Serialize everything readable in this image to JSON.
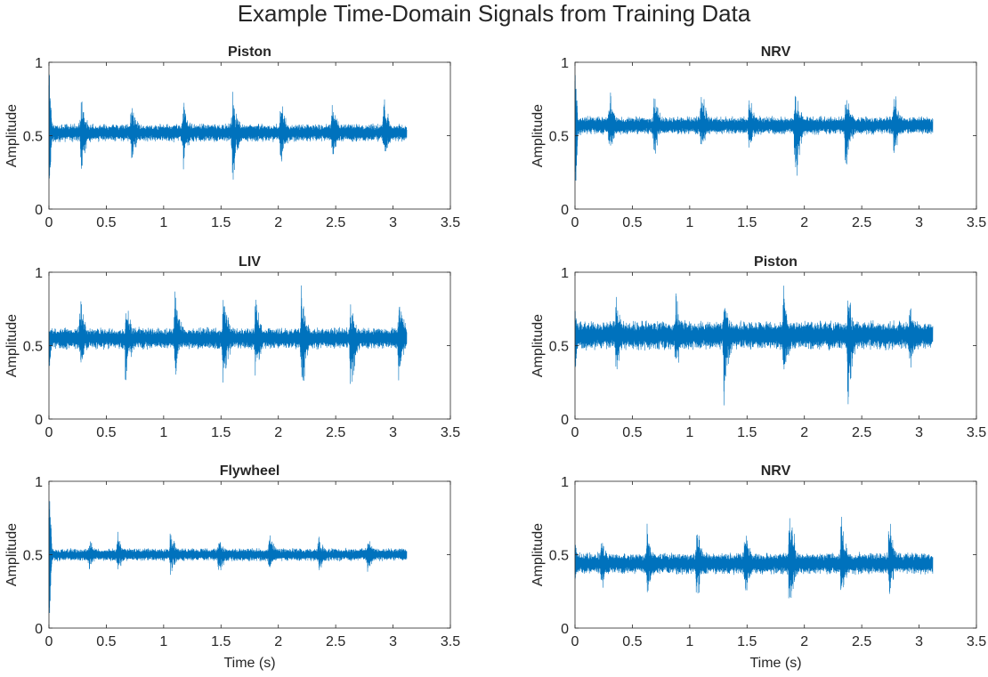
{
  "figure": {
    "title": "Example Time-Domain Signals from Training Data"
  },
  "chart_data": [
    {
      "type": "line",
      "title": "Piston",
      "xlabel": "",
      "ylabel": "Amplitude",
      "xlim": [
        0,
        3.5
      ],
      "ylim": [
        0,
        1
      ],
      "xticks": [
        "0",
        "0.5",
        "1",
        "1.5",
        "2",
        "2.5",
        "3",
        "3.5"
      ],
      "yticks": [
        "0",
        "0.5",
        "1"
      ],
      "grid": false,
      "color": "#0072BD",
      "series": [
        {
          "duration_s": 3.12,
          "baseline": 0.52,
          "noise_amplitude": 0.05,
          "bursts": [
            {
              "t": 0.28,
              "peak": 0.84,
              "trough": 0.2
            },
            {
              "t": 0.72,
              "peak": 0.8,
              "trough": 0.22
            },
            {
              "t": 1.17,
              "peak": 0.8,
              "trough": 0.22
            },
            {
              "t": 1.6,
              "peak": 0.88,
              "trough": 0.0
            },
            {
              "t": 2.02,
              "peak": 0.8,
              "trough": 0.22
            },
            {
              "t": 2.47,
              "peak": 0.84,
              "trough": 0.25
            },
            {
              "t": 2.92,
              "peak": 0.84,
              "trough": 0.28
            }
          ],
          "start_spike": {
            "peak": 1.0,
            "trough": 0.1
          }
        }
      ]
    },
    {
      "type": "line",
      "title": "NRV",
      "xlabel": "",
      "ylabel": "Amplitude",
      "xlim": [
        0,
        3.5
      ],
      "ylim": [
        0,
        1
      ],
      "xticks": [
        "0",
        "0.5",
        "1",
        "1.5",
        "2",
        "2.5",
        "3",
        "3.5"
      ],
      "yticks": [
        "0",
        "0.5",
        "1"
      ],
      "grid": false,
      "color": "#0072BD",
      "series": [
        {
          "duration_s": 3.12,
          "baseline": 0.57,
          "noise_amplitude": 0.05,
          "bursts": [
            {
              "t": 0.3,
              "peak": 0.87,
              "trough": 0.3
            },
            {
              "t": 0.69,
              "peak": 0.85,
              "trough": 0.3
            },
            {
              "t": 1.1,
              "peak": 0.93,
              "trough": 0.3
            },
            {
              "t": 1.52,
              "peak": 0.85,
              "trough": 0.3
            },
            {
              "t": 1.92,
              "peak": 0.97,
              "trough": 0.0
            },
            {
              "t": 2.36,
              "peak": 0.88,
              "trough": 0.17
            },
            {
              "t": 2.78,
              "peak": 0.92,
              "trough": 0.3
            }
          ],
          "start_spike": {
            "peak": 0.97,
            "trough": 0.05
          }
        }
      ]
    },
    {
      "type": "line",
      "title": "LIV",
      "xlabel": "",
      "ylabel": "Amplitude",
      "xlim": [
        0,
        3.5
      ],
      "ylim": [
        0,
        1
      ],
      "xticks": [
        "0",
        "0.5",
        "1",
        "1.5",
        "2",
        "2.5",
        "3",
        "3.5"
      ],
      "yticks": [
        "0",
        "0.5",
        "1"
      ],
      "grid": false,
      "color": "#0072BD",
      "series": [
        {
          "duration_s": 3.12,
          "baseline": 0.55,
          "noise_amplitude": 0.06,
          "bursts": [
            {
              "t": 0.27,
              "peak": 0.9,
              "trough": 0.25
            },
            {
              "t": 0.67,
              "peak": 0.88,
              "trough": 0.15
            },
            {
              "t": 1.1,
              "peak": 0.97,
              "trough": 0.2
            },
            {
              "t": 1.52,
              "peak": 0.97,
              "trough": 0.1
            },
            {
              "t": 1.8,
              "peak": 0.9,
              "trough": 0.2
            },
            {
              "t": 2.2,
              "peak": 0.97,
              "trough": 0.02
            },
            {
              "t": 2.63,
              "peak": 0.9,
              "trough": 0.0
            },
            {
              "t": 3.05,
              "peak": 0.98,
              "trough": 0.2
            }
          ],
          "start_spike": {
            "peak": 0.6,
            "trough": 0.3
          }
        }
      ]
    },
    {
      "type": "line",
      "title": "Piston",
      "xlabel": "",
      "ylabel": "Amplitude",
      "xlim": [
        0,
        3.5
      ],
      "ylim": [
        0,
        1
      ],
      "xticks": [
        "0",
        "0.5",
        "1",
        "1.5",
        "2",
        "2.5",
        "3",
        "3.5"
      ],
      "yticks": [
        "0",
        "0.5",
        "1"
      ],
      "grid": false,
      "color": "#0072BD",
      "series": [
        {
          "duration_s": 3.12,
          "baseline": 0.57,
          "noise_amplitude": 0.08,
          "bursts": [
            {
              "t": 0.36,
              "peak": 0.92,
              "trough": 0.22
            },
            {
              "t": 0.88,
              "peak": 0.99,
              "trough": 0.22
            },
            {
              "t": 1.3,
              "peak": 0.9,
              "trough": 0.05
            },
            {
              "t": 1.82,
              "peak": 0.97,
              "trough": 0.15
            },
            {
              "t": 2.38,
              "peak": 0.99,
              "trough": 0.0
            },
            {
              "t": 2.92,
              "peak": 0.9,
              "trough": 0.25
            }
          ],
          "start_spike": {
            "peak": 0.75,
            "trough": 0.3
          }
        }
      ]
    },
    {
      "type": "line",
      "title": "Flywheel",
      "xlabel": "Time (s)",
      "ylabel": "Amplitude",
      "xlim": [
        0,
        3.5
      ],
      "ylim": [
        0,
        1
      ],
      "xticks": [
        "0",
        "0.5",
        "1",
        "1.5",
        "2",
        "2.5",
        "3",
        "3.5"
      ],
      "yticks": [
        "0",
        "0.5",
        "1"
      ],
      "grid": false,
      "color": "#0072BD",
      "series": [
        {
          "duration_s": 3.12,
          "baseline": 0.5,
          "noise_amplitude": 0.035,
          "bursts": [
            {
              "t": 0.35,
              "peak": 0.65,
              "trough": 0.35
            },
            {
              "t": 0.6,
              "peak": 0.69,
              "trough": 0.34
            },
            {
              "t": 1.06,
              "peak": 0.72,
              "trough": 0.32
            },
            {
              "t": 1.48,
              "peak": 0.67,
              "trough": 0.3
            },
            {
              "t": 1.92,
              "peak": 0.7,
              "trough": 0.33
            },
            {
              "t": 2.35,
              "peak": 0.67,
              "trough": 0.33
            },
            {
              "t": 2.78,
              "peak": 0.68,
              "trough": 0.33
            }
          ],
          "start_spike": {
            "peak": 1.0,
            "trough": 0.0
          }
        }
      ]
    },
    {
      "type": "line",
      "title": "NRV",
      "xlabel": "Time (s)",
      "ylabel": "Amplitude",
      "xlim": [
        0,
        3.5
      ],
      "ylim": [
        0,
        1
      ],
      "xticks": [
        "0",
        "0.5",
        "1",
        "1.5",
        "2",
        "2.5",
        "3",
        "3.5"
      ],
      "yticks": [
        "0",
        "0.5",
        "1"
      ],
      "grid": false,
      "color": "#0072BD",
      "series": [
        {
          "duration_s": 3.12,
          "baseline": 0.44,
          "noise_amplitude": 0.06,
          "bursts": [
            {
              "t": 0.23,
              "peak": 0.7,
              "trough": 0.15
            },
            {
              "t": 0.63,
              "peak": 0.75,
              "trough": 0.15
            },
            {
              "t": 1.06,
              "peak": 0.78,
              "trough": 0.1
            },
            {
              "t": 1.48,
              "peak": 0.77,
              "trough": 0.1
            },
            {
              "t": 1.87,
              "peak": 0.97,
              "trough": 0.0
            },
            {
              "t": 2.32,
              "peak": 0.84,
              "trough": 0.1
            },
            {
              "t": 2.74,
              "peak": 0.85,
              "trough": 0.2
            }
          ],
          "start_spike": {
            "peak": 0.6,
            "trough": 0.3
          }
        }
      ]
    }
  ]
}
